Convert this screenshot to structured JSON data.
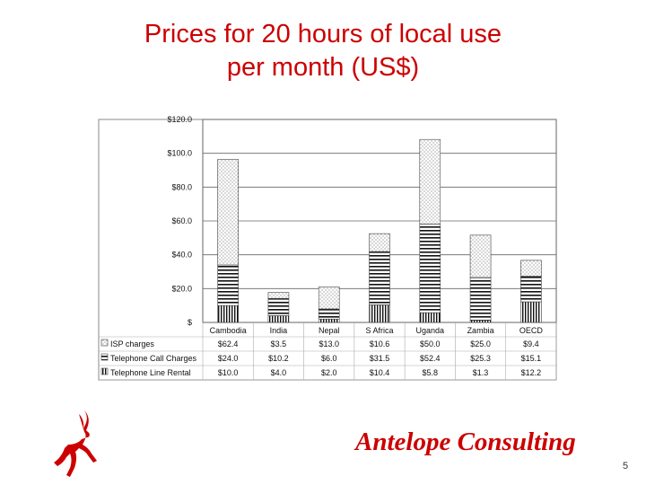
{
  "slide": {
    "title_line1": "Prices for 20 hours of local use",
    "title_line2": "per month (US$)",
    "brand": "Antelope Consulting",
    "page_number": "5"
  },
  "logo": {
    "icon": "antelope-icon",
    "color": "#cc0000"
  },
  "chart_data": {
    "type": "bar",
    "stacked": true,
    "categories": [
      "Cambodia",
      "India",
      "Nepal",
      "S Africa",
      "Uganda",
      "Zambia",
      "OECD"
    ],
    "ylim": [
      0,
      120
    ],
    "yticks": [
      "$",
      "$20.0",
      "$40.0",
      "$60.0",
      "$80.0",
      "$100.0",
      "$120.0"
    ],
    "grid": true,
    "legend": "table-bottom-left",
    "series": [
      {
        "name": "ISP charges",
        "values": [
          62.4,
          3.5,
          13.0,
          10.6,
          50.0,
          25.0,
          9.4
        ],
        "labels": [
          "$62.4",
          "$3.5",
          "$13.0",
          "$10.6",
          "$50.0",
          "$25.0",
          "$9.4"
        ]
      },
      {
        "name": "Telephone Call Charges",
        "values": [
          24.0,
          10.2,
          6.0,
          31.5,
          52.4,
          25.3,
          15.1
        ],
        "labels": [
          "$24.0",
          "$10.2",
          "$6.0",
          "$31.5",
          "$52.4",
          "$25.3",
          "$15.1"
        ]
      },
      {
        "name": "Telephone Line Rental",
        "values": [
          10.0,
          4.0,
          2.0,
          10.4,
          5.8,
          1.3,
          12.2
        ],
        "labels": [
          "$10.0",
          "$4.0",
          "$2.0",
          "$10.4",
          "$5.8",
          "$1.3",
          "$12.2"
        ]
      }
    ]
  }
}
